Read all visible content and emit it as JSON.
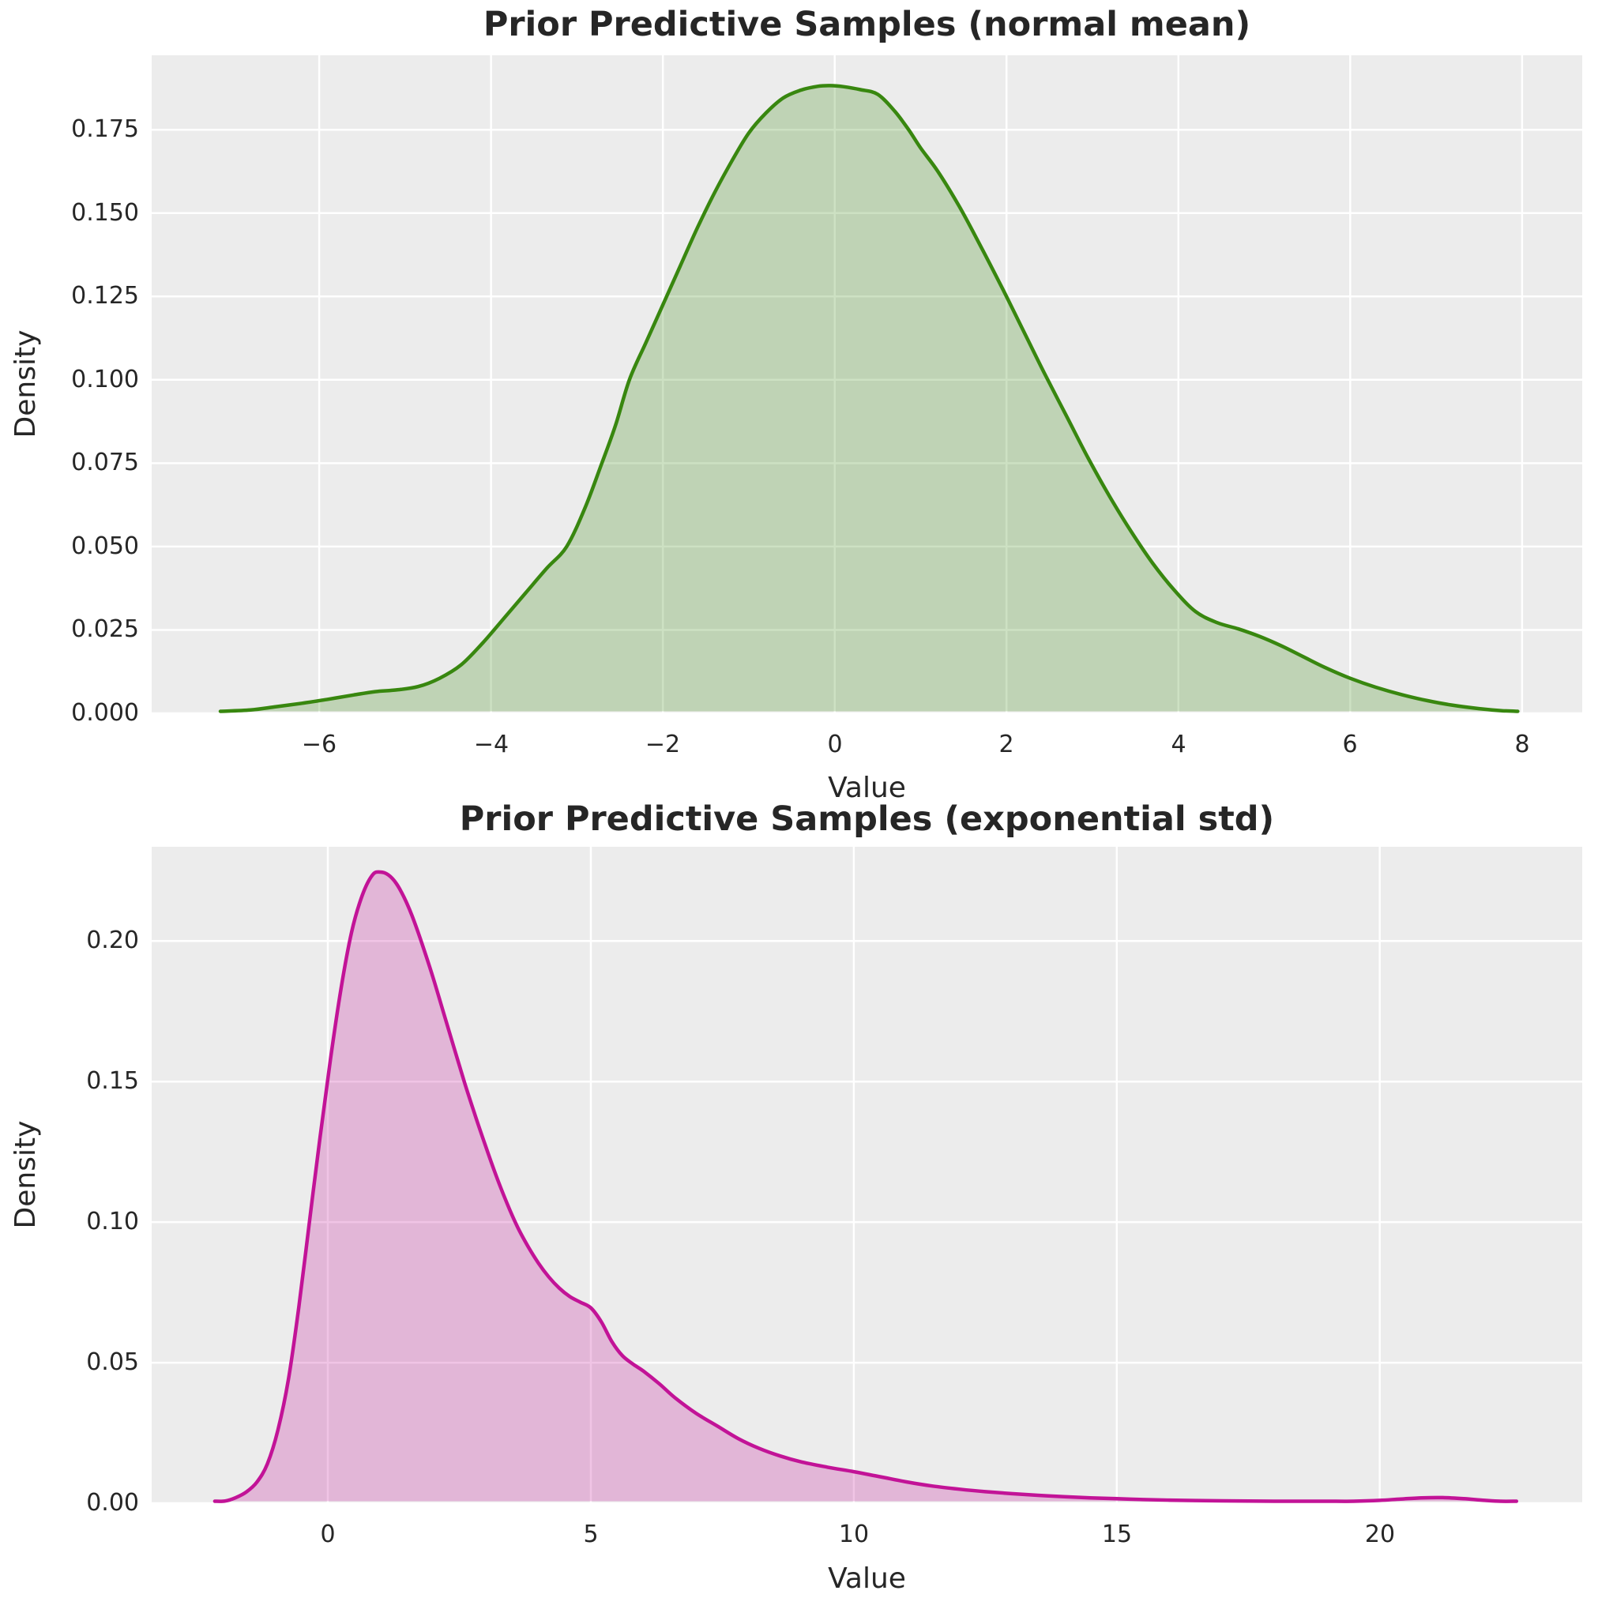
{
  "figure": {
    "background": "#ffffff",
    "axes_background": "#ececec",
    "grid_color": "#ffffff",
    "text_color": "#262626"
  },
  "chart_data": [
    {
      "type": "area",
      "title": "Prior Predictive Samples (normal mean)",
      "xlabel": "Value",
      "ylabel": "Density",
      "line_color": "#38870f",
      "fill_opacity": 0.25,
      "grid": true,
      "legend": "none",
      "xlim": [
        -7.95,
        8.7
      ],
      "ylim": [
        0,
        0.1973
      ],
      "x_ticks": [
        {
          "value": -6,
          "label": "−6"
        },
        {
          "value": -4,
          "label": "−4"
        },
        {
          "value": -2,
          "label": "−2"
        },
        {
          "value": 0,
          "label": "0"
        },
        {
          "value": 2,
          "label": "2"
        },
        {
          "value": 4,
          "label": "4"
        },
        {
          "value": 6,
          "label": "6"
        },
        {
          "value": 8,
          "label": "8"
        }
      ],
      "y_ticks": [
        {
          "value": 0.0,
          "label": "0.000"
        },
        {
          "value": 0.025,
          "label": "0.025"
        },
        {
          "value": 0.05,
          "label": "0.050"
        },
        {
          "value": 0.075,
          "label": "0.075"
        },
        {
          "value": 0.1,
          "label": "0.100"
        },
        {
          "value": 0.125,
          "label": "0.125"
        },
        {
          "value": 0.15,
          "label": "0.150"
        },
        {
          "value": 0.175,
          "label": "0.175"
        }
      ],
      "series": [
        {
          "name": "kde-normal-mean",
          "x": [
            -7.15,
            -6.8,
            -6.5,
            -6.2,
            -5.9,
            -5.6,
            -5.35,
            -5.1,
            -4.85,
            -4.6,
            -4.35,
            -4.1,
            -3.85,
            -3.6,
            -3.35,
            -3.12,
            -2.9,
            -2.71,
            -2.55,
            -2.39,
            -2.2,
            -2.0,
            -1.8,
            -1.6,
            -1.4,
            -1.2,
            -1.0,
            -0.8,
            -0.6,
            -0.4,
            -0.2,
            -0.05,
            0.1,
            0.3,
            0.5,
            0.7,
            0.86,
            1.0,
            1.2,
            1.45,
            1.7,
            1.95,
            2.2,
            2.45,
            2.7,
            2.95,
            3.2,
            3.45,
            3.7,
            3.95,
            4.2,
            4.45,
            4.7,
            4.95,
            5.2,
            5.45,
            5.7,
            6.0,
            6.3,
            6.6,
            6.9,
            7.2,
            7.5,
            7.75,
            7.95
          ],
          "y": [
            0.0002,
            0.001,
            0.002,
            0.003,
            0.0042,
            0.0055,
            0.0065,
            0.007,
            0.008,
            0.0105,
            0.0145,
            0.021,
            0.0285,
            0.036,
            0.0435,
            0.05,
            0.062,
            0.075,
            0.0865,
            0.1,
            0.111,
            0.1225,
            0.134,
            0.1455,
            0.156,
            0.1655,
            0.174,
            0.18,
            0.1845,
            0.1868,
            0.188,
            0.1882,
            0.1879,
            0.187,
            0.1856,
            0.1805,
            0.175,
            0.1695,
            0.1625,
            0.152,
            0.14,
            0.1275,
            0.1145,
            0.1015,
            0.089,
            0.0765,
            0.065,
            0.0545,
            0.045,
            0.037,
            0.0305,
            0.0272,
            0.0253,
            0.023,
            0.0202,
            0.017,
            0.0138,
            0.0105,
            0.0078,
            0.0056,
            0.0038,
            0.0024,
            0.0014,
            0.0008,
            0.0004
          ]
        }
      ]
    },
    {
      "type": "area",
      "title": "Prior Predictive Samples (exponential std)",
      "xlabel": "Value",
      "ylabel": "Density",
      "line_color": "#c21397",
      "fill_opacity": 0.25,
      "grid": true,
      "legend": "none",
      "xlim": [
        -3.35,
        23.85
      ],
      "ylim": [
        0,
        0.2335
      ],
      "x_ticks": [
        {
          "value": 0,
          "label": "0"
        },
        {
          "value": 5,
          "label": "5"
        },
        {
          "value": 10,
          "label": "10"
        },
        {
          "value": 15,
          "label": "15"
        },
        {
          "value": 20,
          "label": "20"
        }
      ],
      "y_ticks": [
        {
          "value": 0.0,
          "label": "0.00"
        },
        {
          "value": 0.05,
          "label": "0.05"
        },
        {
          "value": 0.1,
          "label": "0.10"
        },
        {
          "value": 0.15,
          "label": "0.15"
        },
        {
          "value": 0.2,
          "label": "0.20"
        }
      ],
      "series": [
        {
          "name": "kde-exponential-std",
          "x": [
            -2.15,
            -1.95,
            -1.75,
            -1.55,
            -1.35,
            -1.15,
            -0.95,
            -0.75,
            -0.55,
            -0.35,
            -0.15,
            0.05,
            0.25,
            0.45,
            0.65,
            0.85,
            1.0,
            1.15,
            1.3,
            1.45,
            1.6,
            1.8,
            2.0,
            2.2,
            2.4,
            2.6,
            2.8,
            3.0,
            3.2,
            3.4,
            3.6,
            3.8,
            4.0,
            4.2,
            4.4,
            4.6,
            4.8,
            5.0,
            5.2,
            5.4,
            5.6,
            5.8,
            6.0,
            6.3,
            6.6,
            7.0,
            7.4,
            7.8,
            8.2,
            8.6,
            9.0,
            9.5,
            10.0,
            10.5,
            11.0,
            11.5,
            12.0,
            12.5,
            13.0,
            13.5,
            14.0,
            14.5,
            15.0,
            15.5,
            16.0,
            16.5,
            17.0,
            17.5,
            18.0,
            18.5,
            19.0,
            19.5,
            20.0,
            20.4,
            20.8,
            21.2,
            21.6,
            22.0,
            22.3,
            22.6
          ],
          "y": [
            0.0002,
            0.0008,
            0.002,
            0.004,
            0.0075,
            0.014,
            0.026,
            0.044,
            0.07,
            0.1,
            0.13,
            0.158,
            0.183,
            0.203,
            0.216,
            0.2235,
            0.2245,
            0.2235,
            0.2205,
            0.2155,
            0.209,
            0.1985,
            0.187,
            0.1745,
            0.162,
            0.1495,
            0.138,
            0.127,
            0.1165,
            0.107,
            0.0985,
            0.0915,
            0.0855,
            0.0805,
            0.0765,
            0.0735,
            0.0715,
            0.0695,
            0.0645,
            0.0575,
            0.0525,
            0.0495,
            0.047,
            0.0425,
            0.0375,
            0.032,
            0.0275,
            0.023,
            0.0195,
            0.0168,
            0.0147,
            0.0128,
            0.0112,
            0.0094,
            0.0076,
            0.0061,
            0.005,
            0.0041,
            0.0034,
            0.0028,
            0.0023,
            0.0019,
            0.0016,
            0.0013,
            0.0011,
            0.00095,
            0.00085,
            0.00075,
            0.0007,
            0.00065,
            0.0006,
            0.0007,
            0.001,
            0.0015,
            0.0019,
            0.002,
            0.0016,
            0.001,
            0.0006,
            0.0002
          ]
        }
      ]
    }
  ]
}
